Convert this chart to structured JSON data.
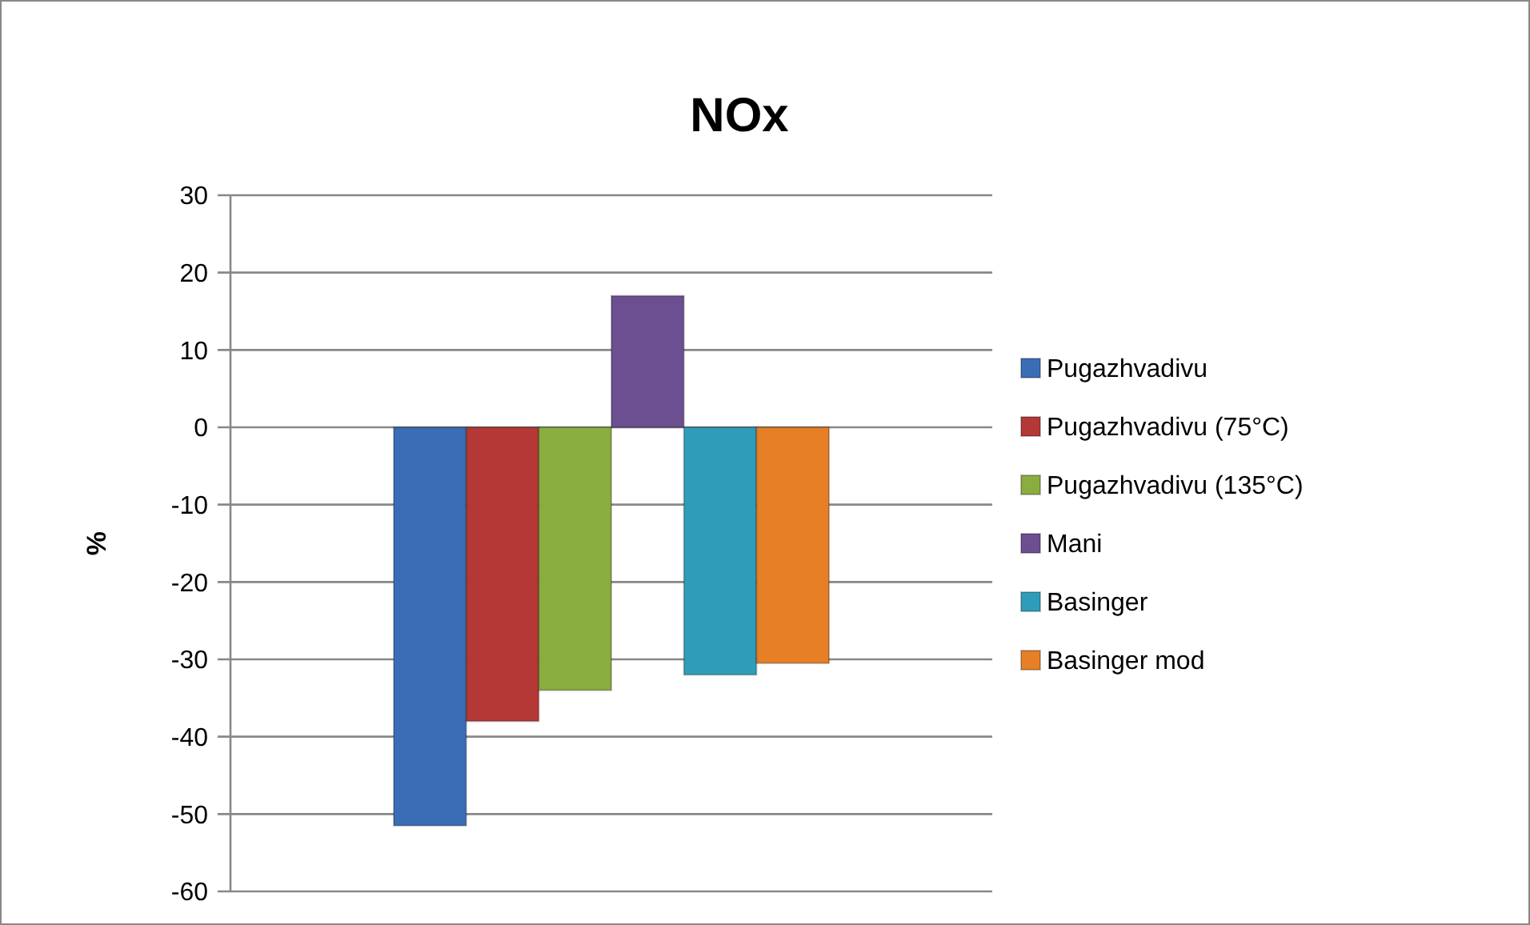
{
  "chart_data": {
    "type": "bar",
    "title": "NOx",
    "ylabel": "%",
    "categories": [
      null
    ],
    "series": [
      {
        "name": "Pugazhvadivu",
        "color": "#3a6db5",
        "values": [
          -51.5
        ]
      },
      {
        "name": "Pugazhvadivu (75°C)",
        "color": "#b33836",
        "values": [
          -38
        ]
      },
      {
        "name": "Pugazhvadivu (135°C)",
        "color": "#8aad3f",
        "values": [
          -34
        ]
      },
      {
        "name": "Mani",
        "color": "#6b4f91",
        "values": [
          17
        ]
      },
      {
        "name": "Basinger",
        "color": "#2f9dba",
        "values": [
          -32
        ]
      },
      {
        "name": "Basinger mod",
        "color": "#e67f25",
        "values": [
          -30.5
        ]
      }
    ],
    "ylim": [
      -60,
      30
    ],
    "yticks": [
      -60,
      -50,
      -40,
      -30,
      -20,
      -10,
      0,
      10,
      20,
      30
    ],
    "grid": "y",
    "legend": "right"
  }
}
